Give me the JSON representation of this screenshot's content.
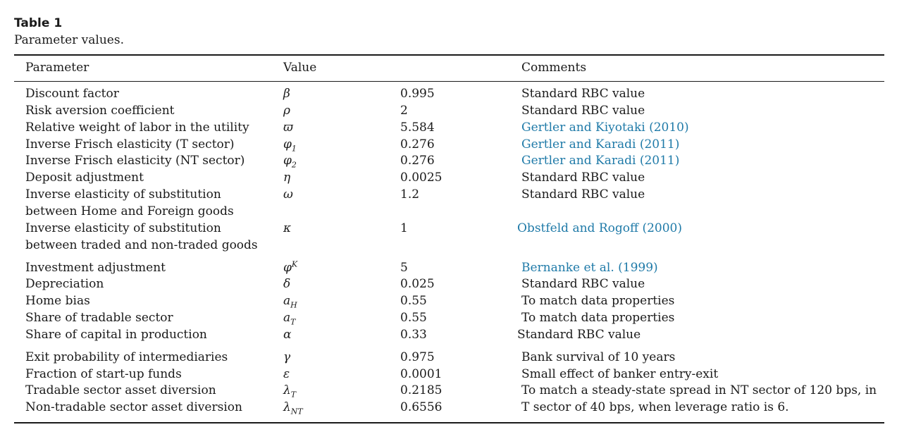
{
  "caption": {
    "title": "Table 1",
    "subtitle": "Parameter values."
  },
  "headers": {
    "parameter": "Parameter",
    "value": "Value",
    "comments": "Comments"
  },
  "rows": [
    {
      "param": "Discount factor",
      "sym": "β",
      "value": "0.995",
      "comment": "Standard RBC value",
      "link": false
    },
    {
      "param": "Risk aversion coefficient",
      "sym": "ρ",
      "value": "2",
      "comment": "Standard RBC value",
      "link": false
    },
    {
      "param": "Relative weight of labor in the utility",
      "sym": "ϖ",
      "value": "5.584",
      "comment": "Gertler and Kiyotaki (2010)",
      "link": true
    },
    {
      "param": "Inverse Frisch elasticity (T sector)",
      "sym": "φ",
      "sym_sub": "1",
      "value": "0.276",
      "comment": "Gertler and Karadi (2011)",
      "link": true
    },
    {
      "param": "Inverse Frisch elasticity (NT sector)",
      "sym": "φ",
      "sym_sub": "2",
      "value": "0.276",
      "comment": "Gertler and Karadi (2011)",
      "link": true
    },
    {
      "param": "Deposit adjustment",
      "sym": "η",
      "value": "0.0025",
      "comment": "Standard RBC value",
      "link": false
    },
    {
      "param": "Inverse elasticity of substitution",
      "param2": "between Home and Foreign goods",
      "sym": "ω",
      "value": "1.2",
      "comment": "Standard RBC value",
      "link": false
    },
    {
      "param": "Inverse elasticity of substitution",
      "param2": "between traded and non-traded goods",
      "sym": "κ",
      "value": "1",
      "comment": "Obstfeld and Rogoff (2000)",
      "link": true
    },
    {
      "param": "Investment adjustment",
      "sym": "φ",
      "sym_sup": "K",
      "value": "5",
      "comment": "Bernanke et al. (1999)",
      "link": true
    },
    {
      "param": "Depreciation",
      "sym": "δ",
      "value": "0.025",
      "comment": "Standard RBC value",
      "link": false
    },
    {
      "param": "Home bias",
      "sym": "a",
      "sym_sub": "H",
      "value": "0.55",
      "comment": "To match data properties",
      "link": false
    },
    {
      "param": "Share of tradable sector",
      "sym": "a",
      "sym_sub": "T",
      "value": "0.55",
      "comment": "To match data properties",
      "link": false
    },
    {
      "param": "Share of capital in production",
      "sym": "α",
      "value": "0.33",
      "comment": "Standard RBC value",
      "link": false
    },
    {
      "param": "Exit probability of intermediaries",
      "sym": "γ",
      "value": "0.975",
      "comment": "Bank survival of 10 years",
      "link": false
    },
    {
      "param": "Fraction of start-up funds",
      "sym": "ε",
      "value": "0.0001",
      "comment": "Small effect of banker entry-exit",
      "link": false
    },
    {
      "param": "Tradable sector asset diversion",
      "sym": "λ",
      "sym_sub": "T",
      "value": "0.2185",
      "comment": "To match a steady-state spread in NT sector of 120 bps, in",
      "link": false
    },
    {
      "param": "Non-tradable sector asset diversion",
      "sym": "λ",
      "sym_sub": "NT",
      "value": "0.6556",
      "comment": "T sector of 40 bps, when leverage ratio is 6.",
      "link": false
    }
  ]
}
